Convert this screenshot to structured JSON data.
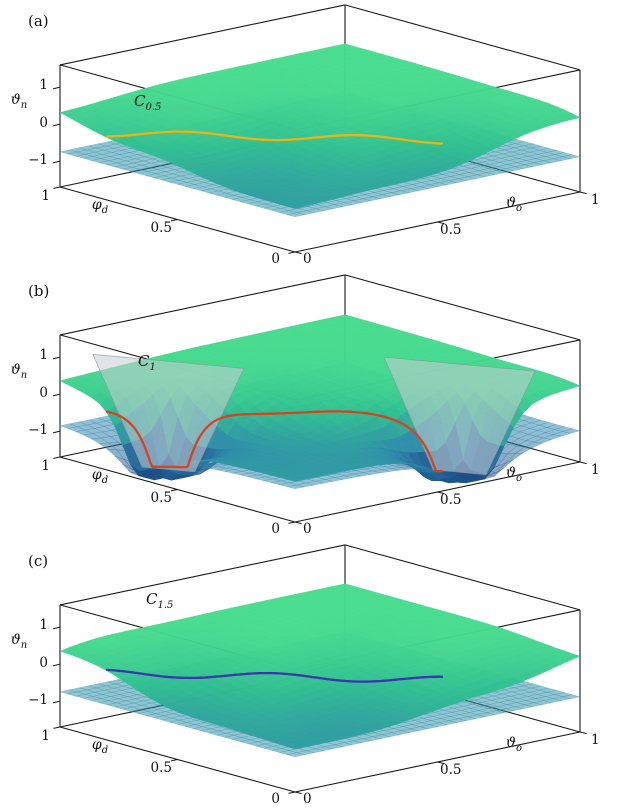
{
  "figure": {
    "panel_tags": [
      "(a)",
      "(b)",
      "(c)"
    ]
  },
  "chart_data": {
    "type": "surface",
    "layout": "three stacked 3D surface plots, same axes and view",
    "axes": {
      "x_label": {
        "base": "ϑ",
        "sub": "o"
      },
      "y_label": {
        "base": "φ",
        "sub": "d"
      },
      "z_label": {
        "base": "ϑ",
        "sub": "n"
      },
      "x_ticks": [
        "0",
        "0.5",
        "1"
      ],
      "y_ticks": [
        "1",
        "0.5",
        "0"
      ],
      "z_ticks": [
        "1",
        "0",
        "−1"
      ],
      "xlim": [
        0,
        1
      ],
      "ylim": [
        0,
        1
      ],
      "zlim": [
        -1,
        1
      ],
      "grid": false
    },
    "surfaces": [
      "phase surface ϑn(ϑo, φd): low plateau near front corner, high plateau toward back, wavy diagonal transition",
      "translucent flat reference sheet below the main surface"
    ],
    "colormap": [
      "#1a4a86",
      "#2e86ac",
      "#2fbd92",
      "#49e18c"
    ],
    "panels": [
      {
        "tag": "(a)",
        "curve_label": "C",
        "curve_sub": "0.5",
        "curve_color": "#eab411",
        "step_amp": 0.55,
        "step_gain": 2.6,
        "step_center": 0.75,
        "ripple_amp": 0.09,
        "plane_z": -0.75,
        "funnels": [],
        "gray_sheets": false
      },
      {
        "tag": "(b)",
        "curve_label": "C",
        "curve_sub": "1",
        "curve_color": "#d8431f",
        "step_amp": 0.55,
        "step_gain": 4.5,
        "step_center": 0.75,
        "ripple_amp": 0.05,
        "plane_z": -0.75,
        "funnels": [
          [
            0.1,
            0.66
          ],
          [
            0.66,
            0.1
          ]
        ],
        "gray_sheets": true
      },
      {
        "tag": "(c)",
        "curve_label": "C",
        "curve_sub": "1.5",
        "curve_color": "#3c35ad",
        "step_amp": 0.55,
        "step_gain": 3.0,
        "step_center": 0.75,
        "ripple_amp": -0.09,
        "plane_z": -0.75,
        "funnels": [],
        "gray_sheets": false
      }
    ]
  }
}
